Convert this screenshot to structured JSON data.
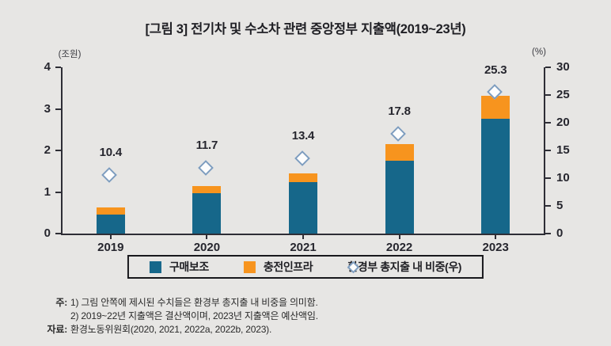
{
  "title": "[그림 3] 전기차 및 수소차 관련 중앙정부 지출액(2019~23년)",
  "chart_data": {
    "type": "bar",
    "subtype": "stacked-bar-with-secondary-axis-markers",
    "categories": [
      "2019",
      "2020",
      "2021",
      "2022",
      "2023"
    ],
    "series": [
      {
        "name": "구매보조",
        "color": "#16678a",
        "values": [
          0.45,
          0.97,
          1.24,
          1.75,
          2.76
        ]
      },
      {
        "name": "충전인프라",
        "color": "#f7941e",
        "values": [
          0.17,
          0.17,
          0.21,
          0.41,
          0.55
        ]
      }
    ],
    "line_series": [
      {
        "name": "환경부 총지출 내 비중(우)",
        "axis": "right",
        "marker": "open-diamond",
        "marker_color": "#7e9dbf",
        "values": [
          10.4,
          11.7,
          13.4,
          17.8,
          25.3
        ],
        "labels": [
          "10.4",
          "11.7",
          "13.4",
          "17.8",
          "25.3"
        ]
      }
    ],
    "left_axis": {
      "unit": "(조원)",
      "range": [
        0,
        4
      ],
      "ticks": [
        0,
        1,
        2,
        3,
        4
      ]
    },
    "right_axis": {
      "unit": "(%)",
      "range": [
        0,
        30
      ],
      "ticks": [
        0,
        5,
        10,
        15,
        20,
        25,
        30
      ]
    },
    "grid": false,
    "legend_position": "bottom"
  },
  "legend": {
    "items": [
      {
        "label": "구매보조",
        "swatch": "square",
        "color": "#16678a"
      },
      {
        "label": "충전인프라",
        "swatch": "square",
        "color": "#f7941e"
      },
      {
        "label": "환경부 총지출 내 비중(우)",
        "swatch": "open-diamond",
        "color": "#7e9dbf"
      }
    ]
  },
  "notes": {
    "note_label": "주:",
    "note1": "1) 그림 안쪽에 제시된 수치들은 환경부 총지출 내 비중을 의미함.",
    "note2": "2) 2019~22년 지출액은 결산액이며, 2023년 지출액은 예산액임.",
    "source_label": "자료:",
    "source": "환경노동위원회(2020, 2021, 2022a, 2022b, 2023)."
  },
  "colors": {
    "background": "#e7e6e4",
    "axis": "#2e2e36",
    "text": "#1f1f24",
    "bar_blue": "#16678a",
    "bar_orange": "#f7941e",
    "diamond_stroke": "#7e9dbf",
    "diamond_fill": "#fdfdfd",
    "legend_border": "#18181c"
  }
}
